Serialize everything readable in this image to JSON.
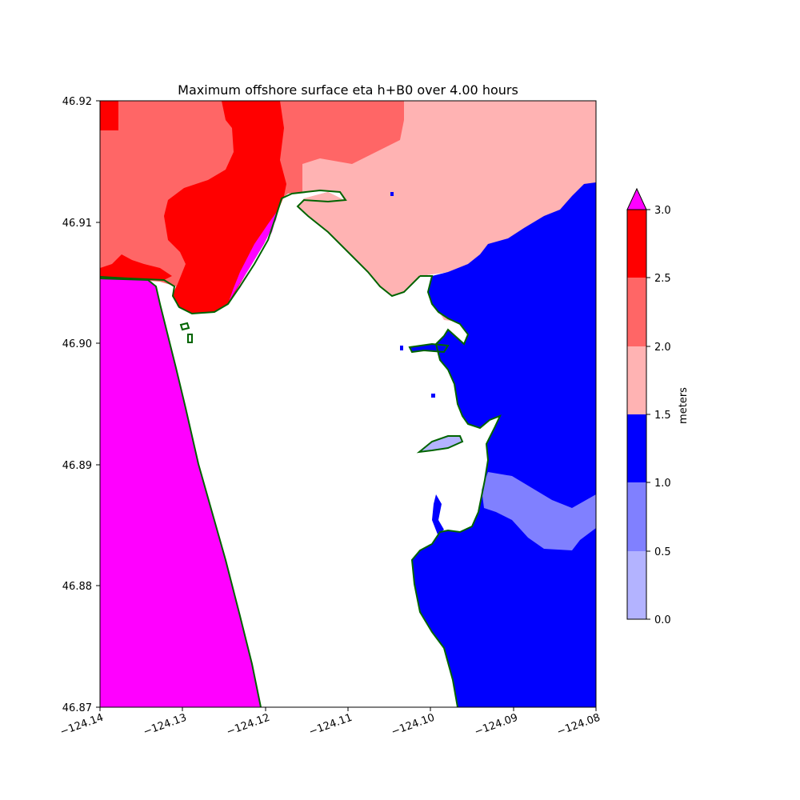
{
  "title": "Maximum offshore surface eta h+B0 over 4.00 hours",
  "x_ticks": [
    "−124.14",
    "−124.13",
    "−124.12",
    "−124.11",
    "−124.10",
    "−124.09",
    "−124.08"
  ],
  "y_ticks": [
    "46.87",
    "46.88",
    "46.89",
    "46.90",
    "46.91",
    "46.92"
  ],
  "colorbar": {
    "label": "meters",
    "ticks": [
      "0.0",
      "0.5",
      "1.0",
      "1.5",
      "2.0",
      "2.5",
      "3.0"
    ],
    "levels": [
      {
        "from": 0.0,
        "to": 0.5,
        "color": "#b3b3ff"
      },
      {
        "from": 0.5,
        "to": 1.0,
        "color": "#8080ff"
      },
      {
        "from": 1.0,
        "to": 1.5,
        "color": "#0000ff"
      },
      {
        "from": 1.5,
        "to": 2.0,
        "color": "#ffb3b3"
      },
      {
        "from": 2.0,
        "to": 2.5,
        "color": "#ff6666"
      },
      {
        "from": 2.5,
        "to": 3.0,
        "color": "#ff0000"
      }
    ],
    "over_color": "#ff00ff"
  },
  "chart_data": {
    "type": "heatmap",
    "title": "Maximum offshore surface eta h+B0 over 4.00 hours",
    "xlim": [
      -124.14,
      -124.08
    ],
    "ylim": [
      46.87,
      46.92
    ],
    "x_ticks": [
      -124.14,
      -124.13,
      -124.12,
      -124.11,
      -124.1,
      -124.09,
      -124.08
    ],
    "y_ticks": [
      46.87,
      46.88,
      46.89,
      46.9,
      46.91,
      46.92
    ],
    "colorbar_label": "meters",
    "colorbar_range": [
      0.0,
      3.0
    ],
    "colorbar_extend": "max",
    "shoreline_color": "#006400"
  }
}
